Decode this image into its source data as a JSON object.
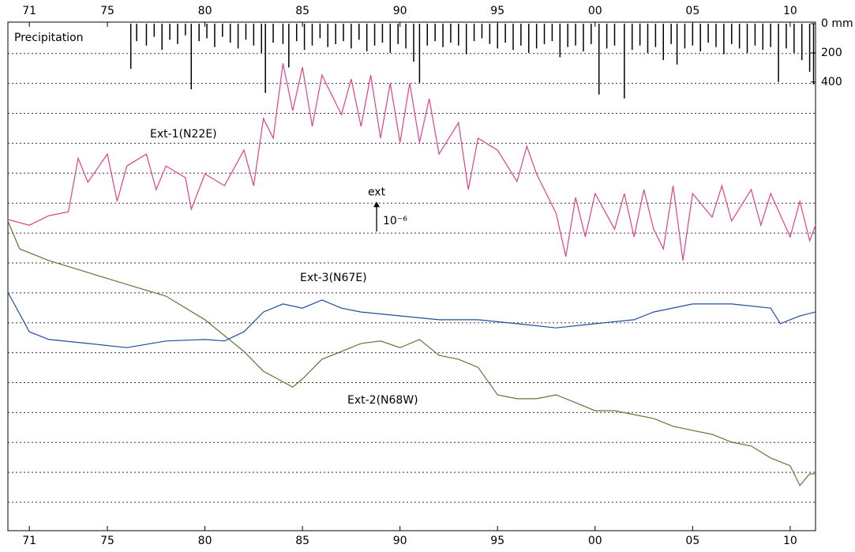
{
  "chart_data": [
    {
      "type": "bar",
      "title": "Precipitation",
      "color": "#000000",
      "xlim": [
        1969.9,
        2011.3
      ],
      "ylim": [
        0,
        520
      ],
      "inverted": true,
      "yticks": [
        {
          "value": 0,
          "label": "0 mm"
        },
        200,
        400
      ],
      "x": [
        1976.2,
        1976.5,
        1977.0,
        1977.4,
        1977.8,
        1978.2,
        1978.6,
        1979.0,
        1979.3,
        1979.7,
        1980.1,
        1980.5,
        1980.9,
        1981.3,
        1981.7,
        1982.1,
        1982.5,
        1982.9,
        1983.1,
        1983.5,
        1984.0,
        1984.3,
        1984.7,
        1985.1,
        1985.5,
        1985.9,
        1986.3,
        1986.7,
        1987.1,
        1987.5,
        1987.9,
        1988.3,
        1988.7,
        1989.1,
        1989.5,
        1989.9,
        1990.3,
        1990.7,
        1991.0,
        1991.4,
        1991.8,
        1992.2,
        1992.6,
        1993.0,
        1993.4,
        1993.8,
        1994.2,
        1994.6,
        1995.0,
        1995.4,
        1995.8,
        1996.2,
        1996.6,
        1997.0,
        1997.4,
        1997.8,
        1998.2,
        1998.6,
        1999.0,
        1999.4,
        1999.8,
        2000.2,
        2000.6,
        2001.0,
        2001.5,
        2001.9,
        2002.3,
        2002.7,
        2003.1,
        2003.5,
        2003.9,
        2004.2,
        2004.6,
        2005.0,
        2005.4,
        2005.8,
        2006.2,
        2006.6,
        2007.0,
        2007.4,
        2007.8,
        2008.2,
        2008.6,
        2009.0,
        2009.4,
        2009.8,
        2010.2,
        2010.6,
        2011.0,
        2011.2
      ],
      "values": [
        310,
        120,
        150,
        90,
        180,
        110,
        140,
        80,
        450,
        120,
        100,
        160,
        90,
        130,
        170,
        110,
        150,
        200,
        475,
        130,
        140,
        300,
        120,
        180,
        150,
        100,
        160,
        140,
        120,
        170,
        110,
        190,
        150,
        130,
        200,
        140,
        170,
        260,
        405,
        150,
        120,
        160,
        130,
        150,
        210,
        120,
        100,
        140,
        170,
        130,
        180,
        150,
        200,
        170,
        140,
        120,
        230,
        160,
        150,
        190,
        140,
        486,
        170,
        150,
        513,
        180,
        150,
        200,
        160,
        250,
        140,
        280,
        170,
        150,
        190,
        130,
        160,
        210,
        140,
        170,
        200,
        150,
        180,
        160,
        400,
        170,
        200,
        250,
        330,
        416
      ]
    },
    {
      "type": "line",
      "xlim": [
        1969.9,
        2011.3
      ],
      "ylim": [
        -9.95,
        7.05
      ],
      "xticks": [
        {
          "value": 1971,
          "label": "71"
        },
        {
          "value": 1975,
          "label": "75"
        },
        {
          "value": 1980,
          "label": "80"
        },
        {
          "value": 1985,
          "label": "85"
        },
        {
          "value": 1990,
          "label": "90"
        },
        {
          "value": 1995,
          "label": "95"
        },
        {
          "value": 2000,
          "label": "00"
        },
        {
          "value": 2005,
          "label": "05"
        },
        {
          "value": 2010,
          "label": "10"
        }
      ],
      "grid_values": [
        -9,
        -8,
        -7,
        -6,
        -5,
        -4,
        -3,
        -2,
        -1,
        0,
        1,
        2,
        3,
        4,
        5,
        6
      ],
      "scale_bar": {
        "label": "ext",
        "unit": "10⁻⁶",
        "x": 1988.8,
        "from": 0.05,
        "length": 1
      },
      "series": [
        {
          "name": "Ext-1(N22E)",
          "color": "#e0408a",
          "x": [
            1969.9,
            1971,
            1972,
            1973,
            1973.5,
            1974,
            1975,
            1975.5,
            1976,
            1977,
            1977.5,
            1978,
            1979,
            1979.3,
            1980,
            1981,
            1982,
            1982.5,
            1983,
            1983.5,
            1984,
            1984.5,
            1985,
            1985.5,
            1986,
            1987,
            1987.5,
            1988,
            1988.5,
            1989,
            1989.5,
            1990,
            1990.5,
            1991,
            1991.5,
            1992,
            1993,
            1993.5,
            1994,
            1995,
            1996,
            1996.5,
            1997,
            1998,
            1998.5,
            1999,
            1999.5,
            2000,
            2001,
            2001.5,
            2002,
            2002.5,
            2003,
            2003.5,
            2004,
            2004.5,
            2005,
            2006,
            2006.5,
            2007,
            2008,
            2008.5,
            2009,
            2010,
            2010.5,
            2011,
            2011.3
          ],
          "values": [
            0.45,
            0.26,
            0.58,
            0.71,
            2.5,
            1.7,
            2.64,
            1.06,
            2.24,
            2.64,
            1.45,
            2.24,
            1.85,
            0.79,
            1.98,
            1.58,
            2.77,
            1.58,
            3.83,
            3.17,
            5.67,
            4.09,
            5.54,
            3.56,
            5.28,
            3.96,
            5.15,
            3.56,
            5.28,
            3.17,
            5.01,
            3.03,
            5.01,
            3.03,
            4.49,
            2.64,
            3.69,
            1.45,
            3.17,
            2.77,
            1.72,
            2.9,
            1.98,
            0.66,
            -0.79,
            1.19,
            -0.13,
            1.32,
            0.13,
            1.32,
            -0.13,
            1.45,
            0.13,
            -0.53,
            1.58,
            -0.92,
            1.32,
            0.53,
            1.58,
            0.4,
            1.45,
            0.26,
            1.32,
            -0.13,
            1.06,
            -0.26,
            0.26
          ]
        },
        {
          "name": "Ext-3(N67E)",
          "color": "#1f4f9a",
          "x": [
            1969.9,
            1971,
            1972,
            1974,
            1976,
            1978,
            1980,
            1981,
            1982,
            1983,
            1984,
            1985,
            1986,
            1987,
            1988,
            1990,
            1992,
            1994,
            1996,
            1998,
            2000,
            2002,
            2003,
            2005,
            2007,
            2009,
            2009.5,
            2010.5,
            2011.3
          ],
          "values": [
            -1.98,
            -3.3,
            -3.56,
            -3.69,
            -3.83,
            -3.61,
            -3.56,
            -3.61,
            -3.3,
            -2.64,
            -2.37,
            -2.51,
            -2.24,
            -2.51,
            -2.64,
            -2.77,
            -2.9,
            -2.9,
            -3.03,
            -3.17,
            -3.03,
            -2.9,
            -2.64,
            -2.37,
            -2.37,
            -2.51,
            -3.03,
            -2.77,
            -2.64
          ]
        },
        {
          "name": "Ext-2(N68W)",
          "color": "#5a7a3a",
          "x": [
            1969.9,
            1970.5,
            1972,
            1974,
            1976,
            1978,
            1980,
            1981,
            1982,
            1983,
            1984.5,
            1985,
            1986,
            1987,
            1988,
            1989,
            1990,
            1991,
            1992,
            1993,
            1994,
            1995,
            1996,
            1997,
            1998,
            1999,
            2000,
            2001,
            2002,
            2003,
            2004,
            2005,
            2006,
            2007,
            2008,
            2009,
            2010,
            2010.5,
            2011,
            2011.3
          ],
          "values": [
            0.4,
            -0.53,
            -0.92,
            -1.32,
            -1.72,
            -2.11,
            -2.9,
            -3.43,
            -3.96,
            -4.62,
            -5.15,
            -4.88,
            -4.22,
            -3.96,
            -3.69,
            -3.61,
            -3.83,
            -3.56,
            -4.09,
            -4.22,
            -4.49,
            -5.41,
            -5.54,
            -5.54,
            -5.41,
            -5.67,
            -5.94,
            -5.94,
            -6.07,
            -6.2,
            -6.46,
            -6.6,
            -6.73,
            -6.99,
            -7.12,
            -7.52,
            -7.78,
            -8.44,
            -8.05,
            -8.05
          ]
        }
      ]
    }
  ]
}
